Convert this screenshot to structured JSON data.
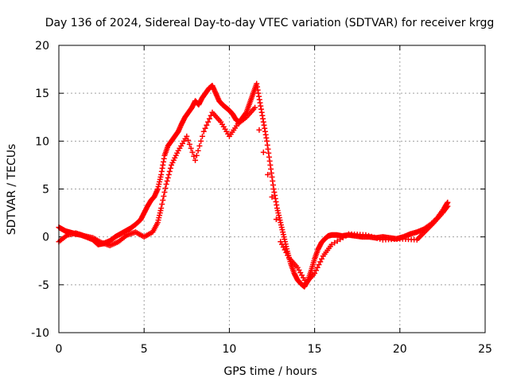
{
  "chart_data": {
    "type": "scatter",
    "title": "Day 136 of 2024, Sidereal Day-to-day VTEC variation (SDTVAR) for receiver krgg",
    "xlabel": "GPS time / hours",
    "ylabel": "SDTVAR / TECUs",
    "xlim": [
      0,
      25
    ],
    "ylim": [
      -10,
      20
    ],
    "xticks": [
      0,
      5,
      10,
      15,
      20,
      25
    ],
    "yticks": [
      -10,
      -5,
      0,
      5,
      10,
      15,
      20
    ],
    "xtick_labels": [
      "0",
      "5",
      "10",
      "15",
      "20",
      "25"
    ],
    "ytick_labels": [
      "-10",
      "-5",
      "0",
      "5",
      "10",
      "15",
      "20"
    ],
    "grid": true,
    "marker": "+",
    "series": [
      {
        "name": "SDTVAR",
        "color": "#ff0000",
        "x": [
          0.0,
          0.2,
          0.4,
          0.6,
          0.8,
          1.0,
          1.3,
          1.6,
          2.0,
          2.3,
          2.6,
          3.0,
          3.3,
          3.6,
          3.9,
          4.2,
          4.5,
          4.8,
          5.0,
          5.2,
          5.4,
          5.6,
          5.8,
          6.0,
          6.2,
          6.4,
          6.6,
          6.8,
          7.0,
          7.2,
          7.4,
          7.6,
          7.8,
          8.0,
          8.2,
          8.4,
          8.6,
          8.8,
          9.0,
          9.2,
          9.4,
          9.6,
          9.8,
          10.0,
          10.2,
          10.4,
          10.6,
          10.8,
          11.0,
          11.2,
          11.4,
          11.6,
          11.8,
          12.0,
          12.2,
          12.4,
          12.6,
          12.8,
          13.0,
          13.2,
          13.4,
          13.6,
          13.8,
          14.0,
          14.2,
          14.4,
          14.6,
          14.8,
          15.0,
          15.2,
          15.4,
          15.6,
          15.8,
          16.0,
          16.3,
          16.6,
          17.0,
          17.4,
          17.8,
          18.2,
          18.6,
          19.0,
          19.4,
          19.8,
          20.2,
          20.6,
          21.0,
          21.4,
          21.8,
          22.2,
          22.6,
          22.8
        ],
        "y": [
          1.0,
          0.8,
          0.6,
          0.5,
          0.4,
          0.3,
          0.2,
          0.0,
          -0.3,
          -0.8,
          -0.7,
          -0.4,
          0.0,
          0.3,
          0.6,
          0.9,
          1.3,
          1.8,
          2.5,
          3.2,
          3.8,
          4.2,
          5.0,
          6.5,
          8.5,
          9.5,
          10.0,
          10.5,
          11.0,
          11.8,
          12.5,
          13.0,
          13.5,
          14.2,
          13.8,
          14.5,
          15.0,
          15.5,
          15.8,
          15.0,
          14.2,
          13.8,
          13.5,
          13.2,
          12.8,
          12.2,
          12.0,
          12.5,
          13.0,
          14.0,
          15.0,
          16.0,
          14.0,
          12.0,
          10.0,
          7.5,
          5.0,
          3.0,
          1.5,
          0.0,
          -1.5,
          -2.8,
          -3.8,
          -4.5,
          -4.9,
          -5.2,
          -4.6,
          -3.5,
          -2.3,
          -1.3,
          -0.6,
          -0.2,
          0.1,
          0.2,
          0.2,
          0.1,
          0.2,
          0.1,
          0.0,
          0.0,
          -0.1,
          0.0,
          -0.1,
          -0.2,
          0.0,
          0.3,
          0.5,
          0.8,
          1.3,
          2.0,
          3.0,
          3.6
        ]
      },
      {
        "name": "SDTVAR-lower-track",
        "color": "#ff0000",
        "x": [
          0.0,
          0.5,
          1.0,
          1.5,
          2.0,
          2.5,
          3.0,
          3.5,
          4.0,
          4.5,
          5.0,
          5.5,
          5.8,
          6.0,
          6.3,
          6.6,
          7.0,
          7.5,
          8.0,
          8.5,
          9.0,
          9.5,
          10.0,
          10.5,
          11.0,
          11.5,
          13.0,
          13.5,
          14.0,
          14.5,
          15.0,
          15.5,
          16.0,
          17.0,
          18.0,
          19.0,
          20.0,
          21.0,
          21.5,
          22.0,
          22.5,
          22.8
        ],
        "y": [
          -0.5,
          0.2,
          0.4,
          0.1,
          -0.1,
          -0.6,
          -0.9,
          -0.5,
          0.2,
          0.5,
          0.0,
          0.5,
          1.5,
          3.0,
          5.5,
          7.5,
          9.0,
          10.5,
          8.0,
          11.0,
          13.0,
          12.0,
          10.5,
          11.8,
          12.5,
          13.5,
          -0.5,
          -2.2,
          -3.2,
          -4.8,
          -3.8,
          -2.0,
          -0.8,
          0.3,
          0.2,
          -0.3,
          -0.2,
          -0.3,
          0.6,
          1.5,
          2.5,
          3.2
        ]
      }
    ]
  }
}
